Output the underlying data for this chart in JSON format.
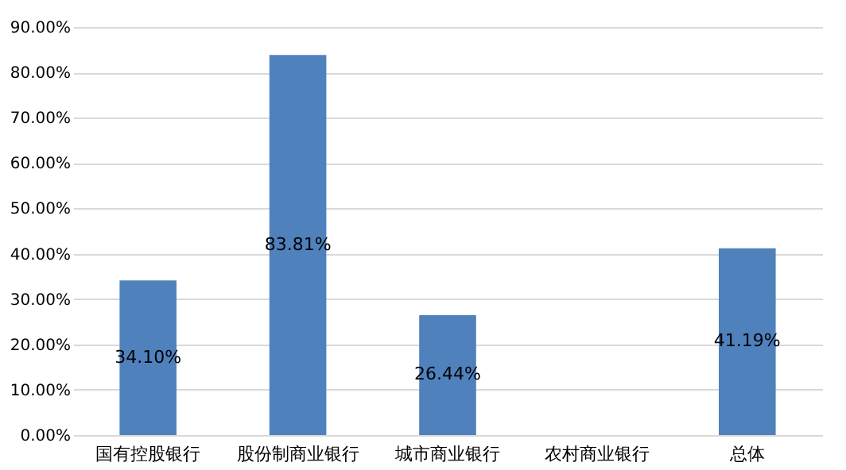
{
  "chart_data": {
    "type": "bar",
    "categories": [
      "国有控股银行",
      "股份制商业银行",
      "城市商业银行",
      "农村商业银行",
      "总体"
    ],
    "values": [
      34.1,
      83.81,
      26.44,
      null,
      41.19
    ],
    "value_labels": [
      "34.10%",
      "83.81%",
      "26.44%",
      null,
      "41.19%"
    ],
    "color": "#4f81bd",
    "ylim": [
      0,
      90
    ],
    "yticks": [
      {
        "value": 0,
        "label": "0.00%"
      },
      {
        "value": 10,
        "label": "10.00%"
      },
      {
        "value": 20,
        "label": "20.00%"
      },
      {
        "value": 30,
        "label": "30.00%"
      },
      {
        "value": 40,
        "label": "40.00%"
      },
      {
        "value": 50,
        "label": "50.00%"
      },
      {
        "value": 60,
        "label": "60.00%"
      },
      {
        "value": 70,
        "label": "70.00%"
      },
      {
        "value": 80,
        "label": "80.00%"
      },
      {
        "value": 90,
        "label": "90.00%"
      }
    ],
    "grid": "y"
  }
}
